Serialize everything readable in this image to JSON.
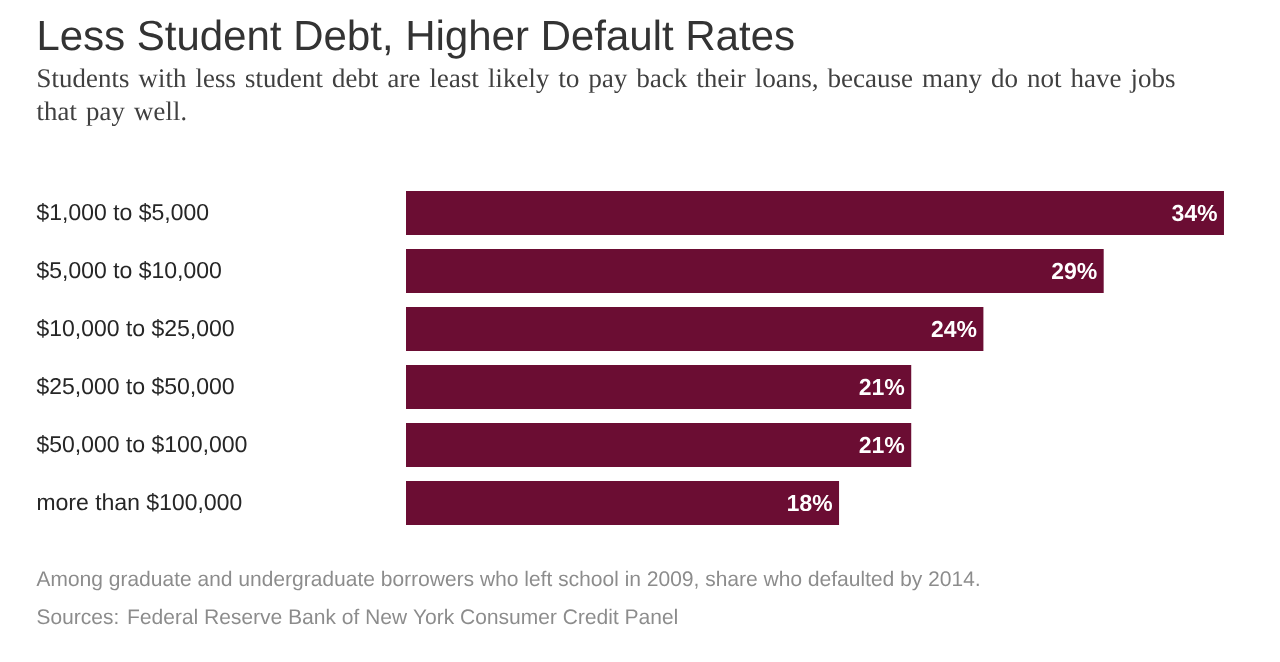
{
  "chart_data": {
    "type": "bar",
    "orientation": "horizontal",
    "title": "Less Student Debt, Higher Default Rates",
    "subtitle": "Students with less student debt are least likely to pay back their loans, because many do not have jobs that pay well.",
    "categories": [
      "$1,000 to $5,000",
      "$5,000 to $10,000",
      "$10,000 to $25,000",
      "$25,000 to $50,000",
      "$50,000 to $100,000",
      "more than $100,000"
    ],
    "values": [
      34,
      29,
      24,
      21,
      21,
      18
    ],
    "value_labels": [
      "34%",
      "29%",
      "24%",
      "21%",
      "21%",
      "18%"
    ],
    "color": "#6b0d33",
    "annotations": [
      "Among graduate and undergraduate borrowers who left school in 2009, share who defaulted by 2014.",
      "Sources: Federal Reserve Bank of New York Consumer Credit Panel"
    ]
  }
}
